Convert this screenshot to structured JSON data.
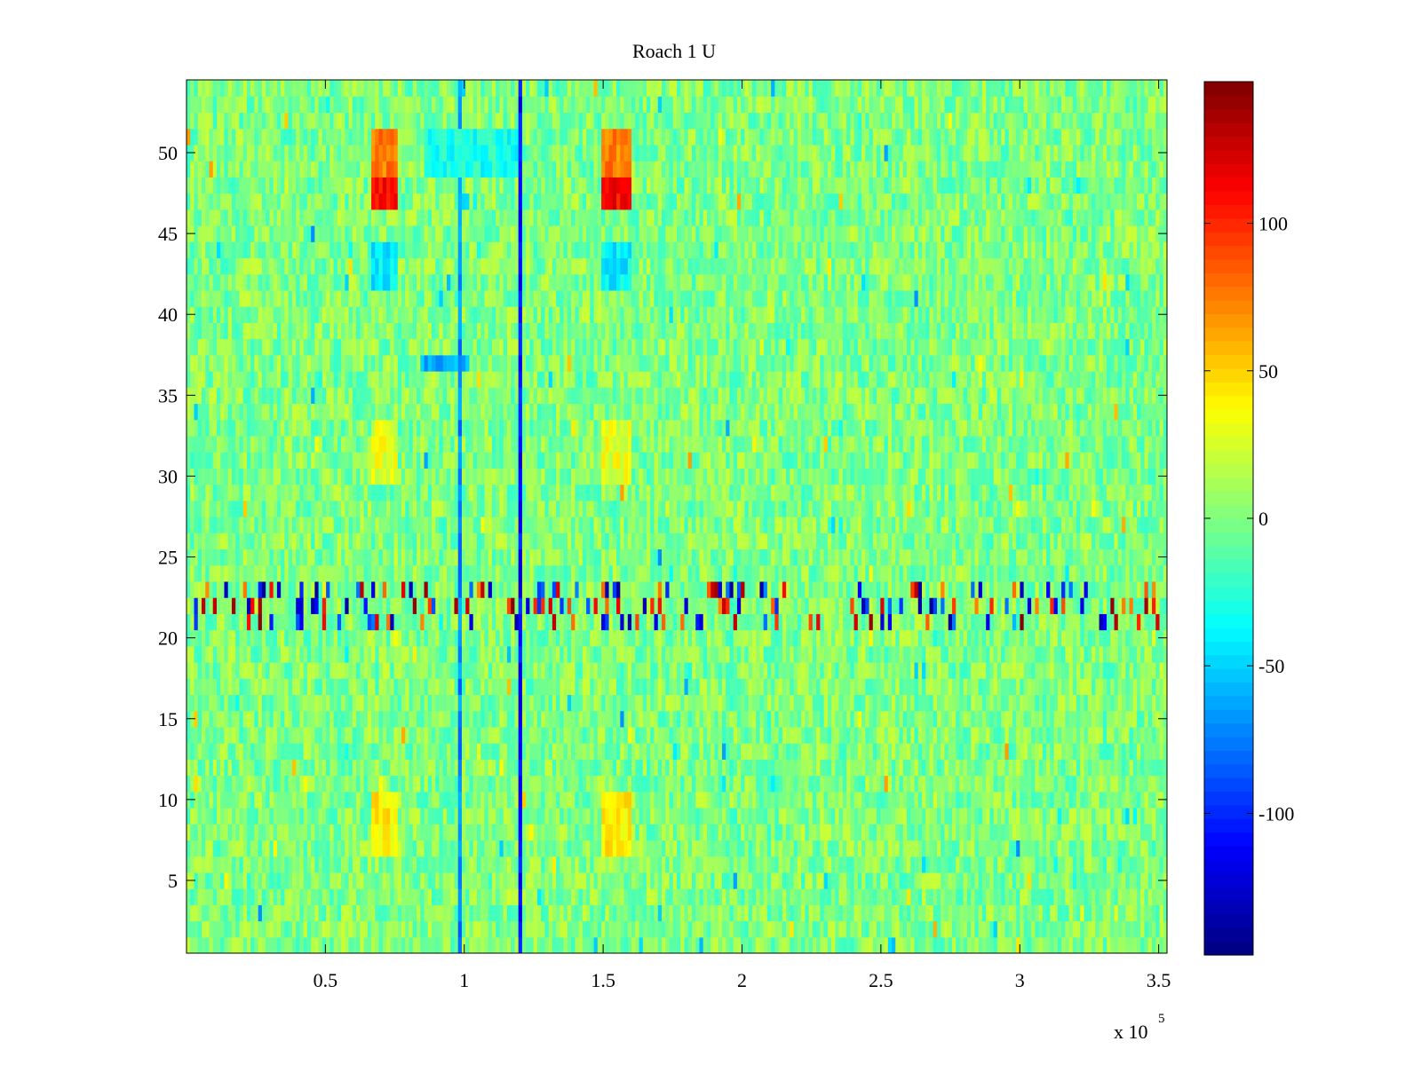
{
  "chart_data": {
    "type": "heatmap",
    "title": "Roach 1 U",
    "xlabel": "",
    "ylabel": "",
    "x_multiplier": {
      "base": "x 10",
      "exponent": "5"
    },
    "xlim": [
      0,
      353000
    ],
    "ylim": [
      0.5,
      54.5
    ],
    "xticks": [
      50000,
      100000,
      150000,
      200000,
      250000,
      300000,
      350000
    ],
    "xtick_labels": [
      "0.5",
      "1",
      "1.5",
      "2",
      "2.5",
      "3",
      "3.5"
    ],
    "yticks": [
      5,
      10,
      15,
      20,
      25,
      30,
      35,
      40,
      45,
      50
    ],
    "ytick_labels": [
      "5",
      "10",
      "15",
      "20",
      "25",
      "30",
      "35",
      "40",
      "45",
      "50"
    ],
    "rows": 54,
    "clim": [
      -148,
      148
    ],
    "colorbar": {
      "ticks": [
        -100,
        -50,
        0,
        50,
        100
      ],
      "tick_labels": [
        "-100",
        "-50",
        "0",
        "50",
        "100"
      ],
      "colormap": "jet"
    },
    "background_value": 0,
    "noise_amplitude": 22,
    "features": [
      {
        "rows": [
          47,
          51
        ],
        "x": [
          66000,
          76000
        ],
        "value": 75,
        "note": "hot patch near x=0.7e5"
      },
      {
        "rows": [
          47,
          51
        ],
        "x": [
          150000,
          160000
        ],
        "value": 75,
        "note": "hot patch near x=1.55e5"
      },
      {
        "rows": [
          47,
          48
        ],
        "x": [
          66000,
          76000
        ],
        "value": 110
      },
      {
        "rows": [
          47,
          48
        ],
        "x": [
          150000,
          160000
        ],
        "value": 110
      },
      {
        "rows": [
          21,
          23
        ],
        "x": [
          0,
          353000
        ],
        "value": 0,
        "note": "high-variance band with many strong positive/negative spikes"
      },
      {
        "rows": [
          1,
          54
        ],
        "x": [
          119500,
          120500
        ],
        "value": -110,
        "note": "thin dark vertical line"
      },
      {
        "rows": [
          1,
          54
        ],
        "x": [
          97500,
          98500
        ],
        "value": -70,
        "note": "thin vertical line"
      },
      {
        "rows": [
          37,
          37
        ],
        "x": [
          84000,
          102000
        ],
        "value": -60
      },
      {
        "rows": [
          42,
          44
        ],
        "x": [
          66000,
          76000
        ],
        "value": -40
      },
      {
        "rows": [
          42,
          44
        ],
        "x": [
          150000,
          160000
        ],
        "value": -40
      },
      {
        "rows": [
          49,
          51
        ],
        "x": [
          85000,
          120000
        ],
        "value": -30
      },
      {
        "rows": [
          7,
          10
        ],
        "x": [
          66000,
          76000
        ],
        "value": 40
      },
      {
        "rows": [
          7,
          10
        ],
        "x": [
          150000,
          160000
        ],
        "value": 40
      },
      {
        "rows": [
          30,
          33
        ],
        "x": [
          66000,
          76000
        ],
        "value": 30
      },
      {
        "rows": [
          30,
          33
        ],
        "x": [
          150000,
          160000
        ],
        "value": 30
      }
    ]
  }
}
